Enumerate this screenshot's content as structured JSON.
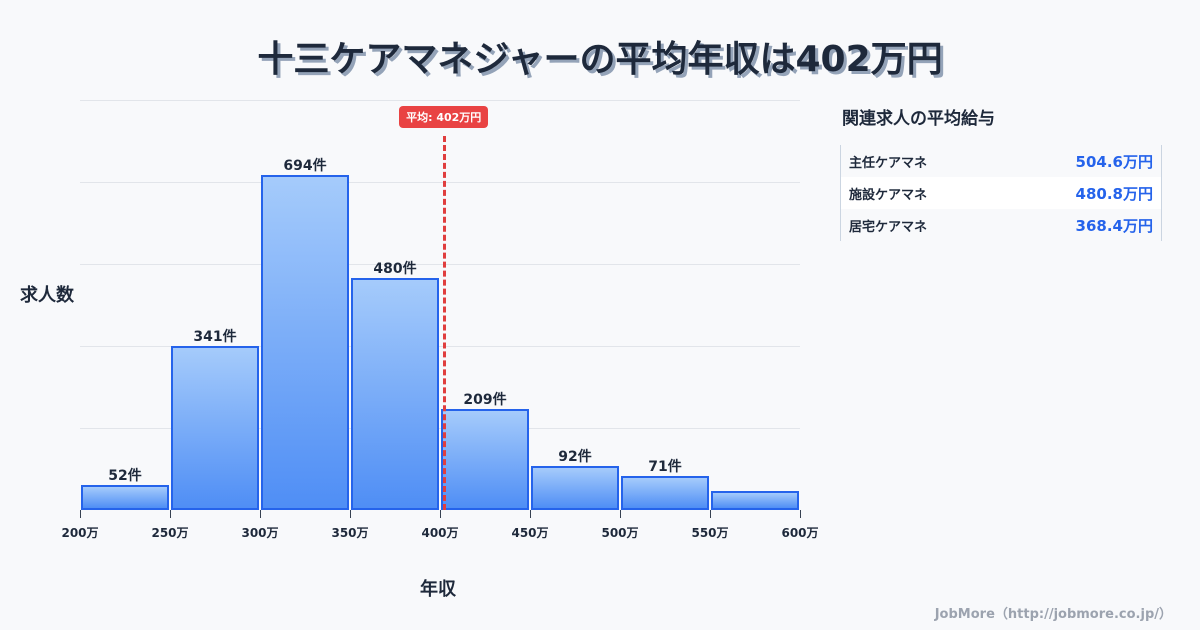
{
  "title": "十三ケアマネジャーの平均年収は402万円",
  "chart_data": {
    "type": "bar",
    "title": "十三ケアマネジャーの平均年収は402万円",
    "xlabel": "年収",
    "ylabel": "求人数",
    "categories": [
      "200-250万",
      "250-300万",
      "300-350万",
      "350-400万",
      "400-450万",
      "450-500万",
      "500-550万",
      "550-600万"
    ],
    "values": [
      52,
      341,
      694,
      480,
      209,
      92,
      71,
      40
    ],
    "value_labels": [
      "52件",
      "341件",
      "694件",
      "480件",
      "209件",
      "92件",
      "71件",
      ""
    ],
    "x_ticks": [
      "200万",
      "250万",
      "300万",
      "350万",
      "400万",
      "450万",
      "500万",
      "550万",
      "600万"
    ],
    "average": {
      "value": 402,
      "label": "平均: 402万円"
    },
    "ylim": [
      0,
      850
    ],
    "grid": true,
    "colors": {
      "bar": "#4f8ef5",
      "bar_border": "#2563eb",
      "average_line": "#e03e3e"
    }
  },
  "side": {
    "title": "関連求人の平均給与",
    "rows": [
      {
        "name": "主任ケアマネ",
        "value": "504.6万円"
      },
      {
        "name": "施設ケアマネ",
        "value": "480.8万円"
      },
      {
        "name": "居宅ケアマネ",
        "value": "368.4万円"
      }
    ]
  },
  "credit": "JobMore（http://jobmore.co.jp/）"
}
